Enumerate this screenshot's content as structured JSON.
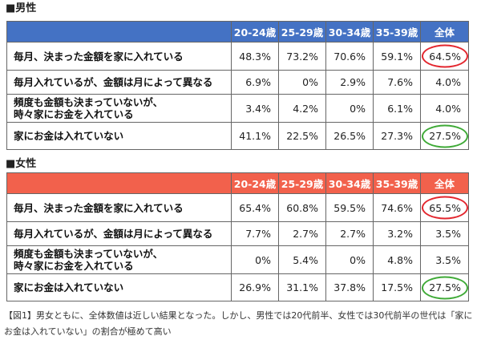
{
  "chart_data": [
    {
      "type": "table",
      "title": "■男性",
      "header_color": "#4472C4",
      "columns": [
        "20-24歳",
        "25-29歳",
        "30-34歳",
        "35-39歳",
        "全体"
      ],
      "rows": [
        {
          "label_lines": [
            "毎月、決まった金額を家に入れている"
          ],
          "values": [
            "48.3%",
            "73.2%",
            "70.6%",
            "59.1%",
            "64.5%"
          ],
          "total_circle_color": "#E3262E"
        },
        {
          "label_lines": [
            "毎月入れているが、金額は月によって異なる"
          ],
          "values": [
            "6.9%",
            "0%",
            "2.9%",
            "7.6%",
            "4.0%"
          ]
        },
        {
          "label_lines": [
            "頻度も金額も決まっていないが、",
            "時々家にお金を入れている"
          ],
          "values": [
            "3.4%",
            "4.2%",
            "0%",
            "6.1%",
            "4.0%"
          ]
        },
        {
          "label_lines": [
            "家にお金は入れていない"
          ],
          "values": [
            "41.1%",
            "22.5%",
            "26.5%",
            "27.3%",
            "27.5%"
          ],
          "total_circle_color": "#3FAA37"
        }
      ]
    },
    {
      "type": "table",
      "title": "■女性",
      "header_color": "#F2614C",
      "columns": [
        "20-24歳",
        "25-29歳",
        "30-34歳",
        "35-39歳",
        "全体"
      ],
      "rows": [
        {
          "label_lines": [
            "毎月、決まった金額を家に入れている"
          ],
          "values": [
            "65.4%",
            "60.8%",
            "59.5%",
            "74.6%",
            "65.5%"
          ],
          "total_circle_color": "#E3262E"
        },
        {
          "label_lines": [
            "毎月入れているが、金額は月によって異なる"
          ],
          "values": [
            "7.7%",
            "2.7%",
            "2.7%",
            "3.2%",
            "3.5%"
          ]
        },
        {
          "label_lines": [
            "頻度も金額も決まっていないが、",
            "時々家にお金を入れている"
          ],
          "values": [
            "0%",
            "5.4%",
            "0%",
            "4.8%",
            "3.5%"
          ]
        },
        {
          "label_lines": [
            "家にお金は入れていない"
          ],
          "values": [
            "26.9%",
            "31.1%",
            "37.8%",
            "17.5%",
            "27.5%"
          ],
          "total_circle_color": "#3FAA37"
        }
      ]
    }
  ],
  "caption": "【図1】男女ともに、全体数値は近しい結果となった。しかし、男性では20代前半、女性では30代前半の世代は「家にお金は入れていない」の割合が極めて高い"
}
